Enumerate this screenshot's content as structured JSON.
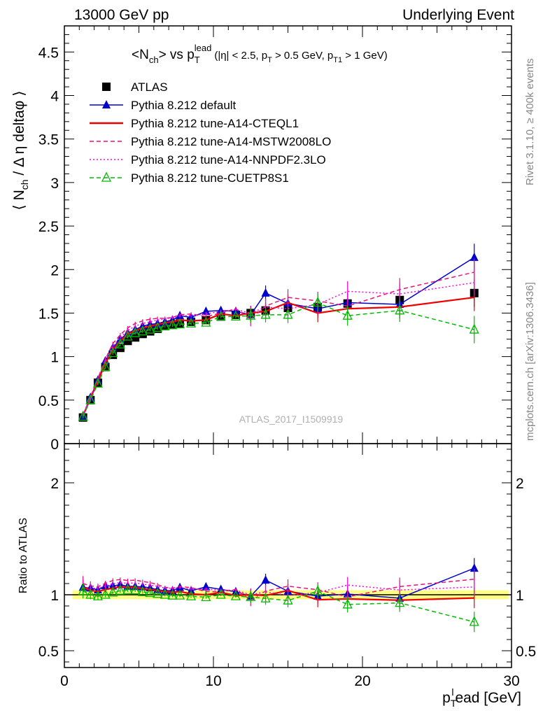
{
  "header": {
    "energy_label": "13000 GeV pp",
    "process_label": "Underlying Event"
  },
  "side_labels": {
    "rivet": "Rivet 3.1.10, ≥ 400k events",
    "mcplots": "mcplots.cern.ch [arXiv:1306.3436]"
  },
  "analysis_id": "ATLAS_2017_I1509919",
  "chart_data": [
    {
      "type": "line",
      "panel": "main",
      "title": "<N_ch> vs p_T^lead (|η| < 2.5, p_T > 0.5 GeV, p_T1 > 1 GeV)",
      "ylabel": "⟨ N_ch / Δη deltaφ ⟩",
      "xlabel": "p_T^lead [GeV]",
      "xlim": [
        0,
        30
      ],
      "ylim": [
        0,
        4.8
      ],
      "xticks": [
        0,
        10,
        20,
        30
      ],
      "yticks": [
        0,
        0.5,
        1,
        1.5,
        2,
        2.5,
        3,
        3.5,
        4,
        4.5
      ],
      "x": [
        1.25,
        1.75,
        2.25,
        2.75,
        3.25,
        3.75,
        4.25,
        4.75,
        5.25,
        5.75,
        6.25,
        6.75,
        7.25,
        7.75,
        8.5,
        9.5,
        10.5,
        11.5,
        12.5,
        13.5,
        15,
        17,
        19,
        22.5,
        27.5
      ],
      "series": [
        {
          "name": "ATLAS",
          "color": "#000000",
          "style": "markers",
          "marker": "square",
          "values": [
            0.3,
            0.5,
            0.7,
            0.88,
            1.02,
            1.1,
            1.18,
            1.22,
            1.26,
            1.29,
            1.32,
            1.35,
            1.37,
            1.38,
            1.4,
            1.42,
            1.46,
            1.48,
            1.5,
            1.53,
            1.56,
            1.57,
            1.61,
            1.65,
            1.73
          ]
        },
        {
          "name": "Pythia 8.212 default",
          "color": "#0000cc",
          "style": "solid",
          "marker": "triangle",
          "values": [
            0.32,
            0.53,
            0.73,
            0.95,
            1.1,
            1.2,
            1.27,
            1.31,
            1.35,
            1.37,
            1.38,
            1.4,
            1.42,
            1.47,
            1.45,
            1.52,
            1.53,
            1.52,
            1.48,
            1.73,
            1.61,
            1.55,
            1.62,
            1.6,
            2.14
          ]
        },
        {
          "name": "Pythia 8.212 tune-A14-CTEQL1",
          "color": "#ee0000",
          "style": "solid",
          "marker": "none",
          "values": [
            0.32,
            0.52,
            0.72,
            0.92,
            1.08,
            1.18,
            1.26,
            1.3,
            1.33,
            1.35,
            1.37,
            1.39,
            1.4,
            1.42,
            1.41,
            1.42,
            1.49,
            1.47,
            1.5,
            1.52,
            1.62,
            1.5,
            1.55,
            1.57,
            1.68
          ]
        },
        {
          "name": "Pythia 8.212 tune-A14-MSTW2008LO",
          "color": "#ee1177",
          "style": "dashed",
          "marker": "none",
          "values": [
            0.33,
            0.54,
            0.75,
            0.97,
            1.15,
            1.25,
            1.33,
            1.38,
            1.41,
            1.43,
            1.44,
            1.44,
            1.45,
            1.48,
            1.49,
            1.46,
            1.5,
            1.55,
            1.43,
            1.58,
            1.68,
            1.64,
            1.58,
            1.77,
            1.97
          ]
        },
        {
          "name": "Pythia 8.212 tune-A14-NNPDF2.3LO",
          "color": "#ff00dd",
          "style": "dotted",
          "marker": "none",
          "values": [
            0.32,
            0.53,
            0.74,
            0.95,
            1.12,
            1.22,
            1.3,
            1.35,
            1.38,
            1.4,
            1.42,
            1.43,
            1.45,
            1.47,
            1.47,
            1.49,
            1.52,
            1.54,
            1.5,
            1.57,
            1.55,
            1.6,
            1.75,
            1.72,
            1.85
          ]
        },
        {
          "name": "Pythia 8.212 tune-CUETP8S1",
          "color": "#00bb00",
          "style": "dashed",
          "marker": "open-triangle",
          "values": [
            0.31,
            0.5,
            0.69,
            0.88,
            1.04,
            1.14,
            1.23,
            1.27,
            1.29,
            1.31,
            1.33,
            1.35,
            1.36,
            1.37,
            1.38,
            1.39,
            1.46,
            1.46,
            1.47,
            1.48,
            1.48,
            1.62,
            1.47,
            1.53,
            1.31
          ]
        }
      ],
      "legend": "top-left"
    },
    {
      "type": "line",
      "panel": "ratio",
      "ylabel": "Ratio to ATLAS",
      "xlabel": "p_T^lead [GeV]",
      "xlim": [
        0,
        30
      ],
      "ylim": [
        0.35,
        2.35
      ],
      "yticks": [
        0.5,
        1,
        2
      ],
      "band": {
        "color": "#ffff66",
        "halfwidth": 0.04
      },
      "note": "ratio of each series to ATLAS"
    }
  ]
}
